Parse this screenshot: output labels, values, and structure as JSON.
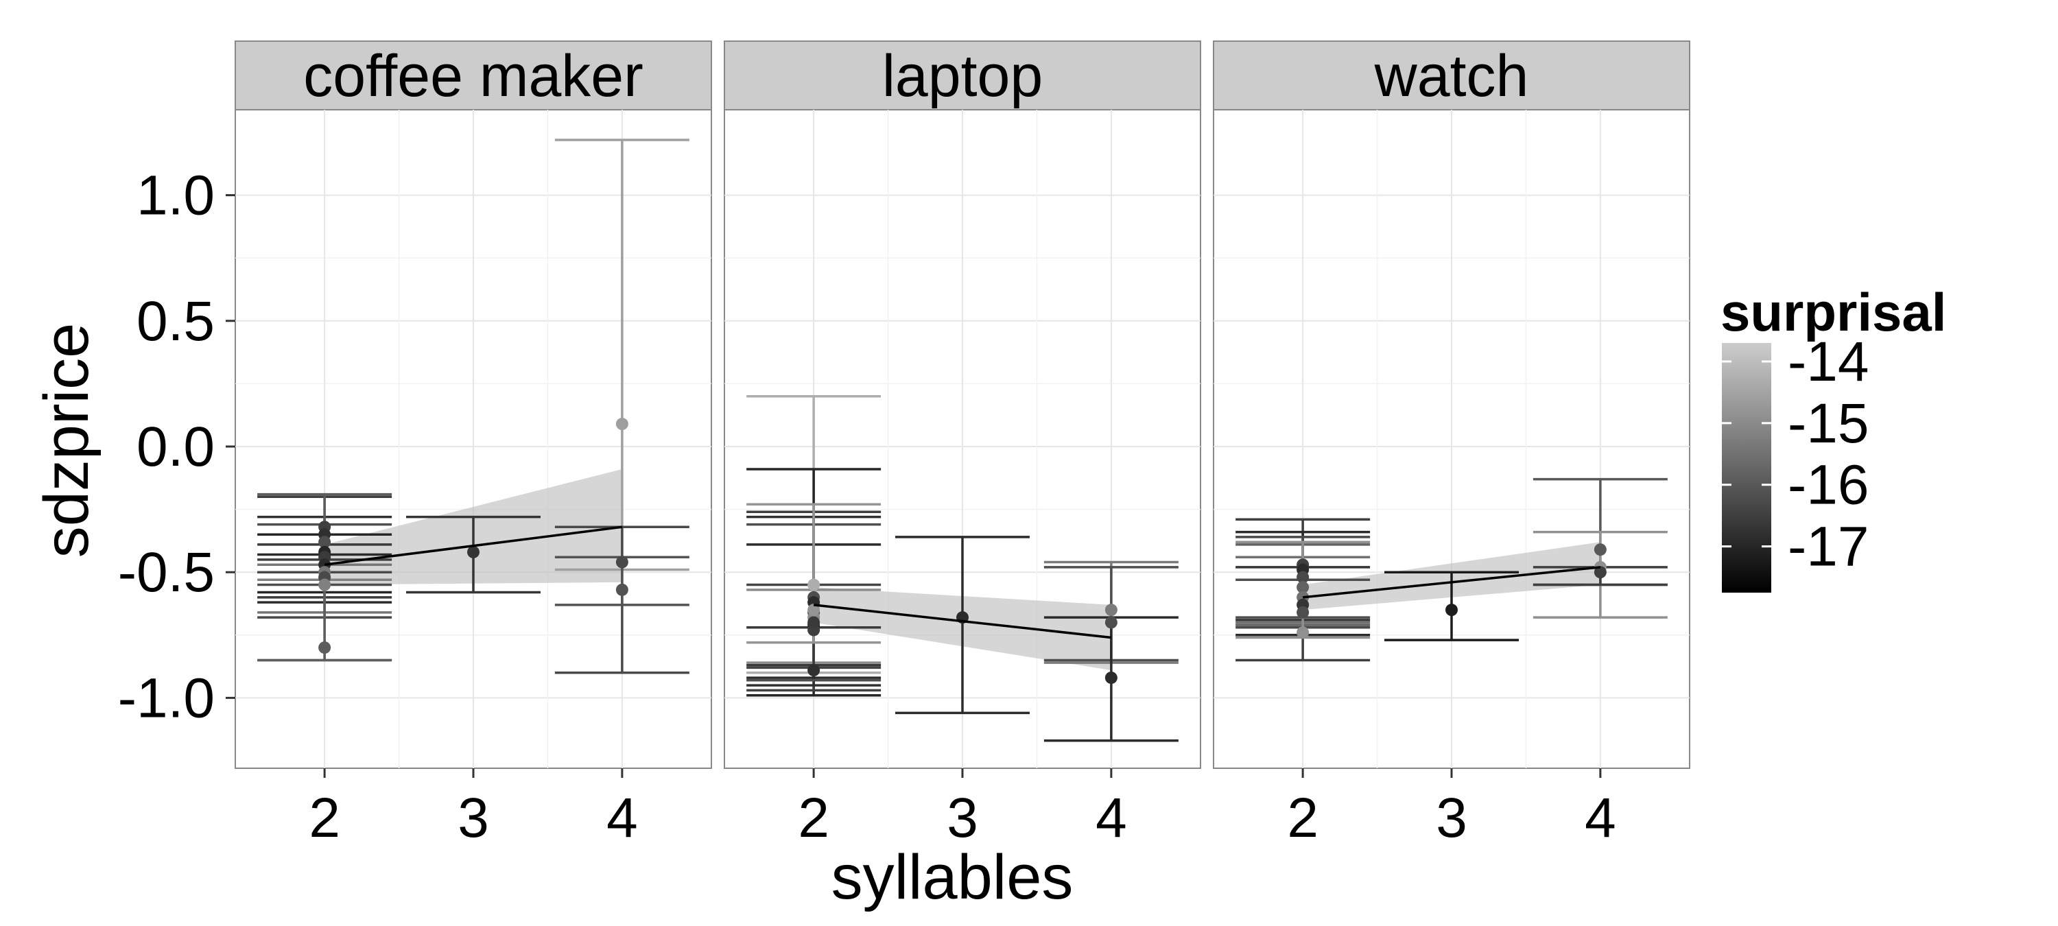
{
  "chart_data": {
    "type": "scatter",
    "xlabel": "syllables",
    "ylabel": "sdzprice",
    "x_ticks": [
      "2",
      "3",
      "4"
    ],
    "y_ticks": [
      "1.0",
      "0.5",
      "0.0",
      "-0.5",
      "-1.0"
    ],
    "xlim": [
      1.4,
      4.6
    ],
    "ylim": [
      -1.28,
      1.34
    ],
    "grid": true,
    "legend": {
      "title": "surprisal",
      "position": "right",
      "labels": [
        "-14",
        "-15",
        "-16",
        "-17"
      ],
      "range": [
        -17.75,
        -13.7
      ],
      "color_low": "#000000",
      "color_high": "#cccccc"
    },
    "panels": [
      {
        "title": "coffee maker",
        "points": [
          {
            "x": 2,
            "y": -0.32,
            "lo": -0.45,
            "hi": -0.2,
            "s": -16.5
          },
          {
            "x": 2,
            "y": -0.35,
            "lo": -0.5,
            "hi": -0.28,
            "s": -16.8
          },
          {
            "x": 2,
            "y": -0.38,
            "lo": -0.55,
            "hi": -0.31,
            "s": -16.2
          },
          {
            "x": 2,
            "y": -0.42,
            "lo": -0.58,
            "hi": -0.35,
            "s": -17.0
          },
          {
            "x": 2,
            "y": -0.44,
            "lo": -0.6,
            "hi": -0.39,
            "s": -16.6
          },
          {
            "x": 2,
            "y": -0.47,
            "lo": -0.62,
            "hi": -0.43,
            "s": -16.9
          },
          {
            "x": 2,
            "y": -0.5,
            "lo": -0.66,
            "hi": -0.47,
            "s": -15.4
          },
          {
            "x": 2,
            "y": -0.52,
            "lo": -0.68,
            "hi": -0.5,
            "s": -16.3
          },
          {
            "x": 2,
            "y": -0.55,
            "lo": -0.85,
            "hi": -0.53,
            "s": -15.2
          },
          {
            "x": 2,
            "y": -0.8,
            "lo": -0.85,
            "hi": -0.19,
            "s": -15.9
          },
          {
            "x": 3,
            "y": -0.42,
            "lo": -0.58,
            "hi": -0.28,
            "s": -16.7
          },
          {
            "x": 4,
            "y": 0.09,
            "lo": -0.49,
            "hi": 1.22,
            "s": -14.6
          },
          {
            "x": 4,
            "y": -0.46,
            "lo": -0.9,
            "hi": -0.32,
            "s": -16.3
          },
          {
            "x": 4,
            "y": -0.57,
            "lo": -0.63,
            "hi": -0.44,
            "s": -16.1
          }
        ],
        "fit": {
          "x": [
            2,
            4
          ],
          "y": [
            -0.47,
            -0.32
          ],
          "band_lo": [
            -0.55,
            -0.54
          ],
          "band_hi": [
            -0.39,
            -0.09
          ]
        }
      },
      {
        "title": "laptop",
        "points": [
          {
            "x": 2,
            "y": -0.55,
            "lo": -0.9,
            "hi": 0.2,
            "s": -14.3
          },
          {
            "x": 2,
            "y": -0.71,
            "lo": -0.99,
            "hi": -0.09,
            "s": -17.0
          },
          {
            "x": 2,
            "y": -0.73,
            "lo": -0.97,
            "hi": -0.26,
            "s": -16.5
          },
          {
            "x": 2,
            "y": -0.89,
            "lo": -0.95,
            "hi": -0.28,
            "s": -16.8
          },
          {
            "x": 2,
            "y": -0.6,
            "lo": -0.93,
            "hi": -0.31,
            "s": -16.2
          },
          {
            "x": 2,
            "y": -0.62,
            "lo": -0.92,
            "hi": -0.39,
            "s": -16.9
          },
          {
            "x": 2,
            "y": -0.66,
            "lo": -0.88,
            "hi": -0.55,
            "s": -16.4
          },
          {
            "x": 2,
            "y": -0.68,
            "lo": -0.86,
            "hi": -0.57,
            "s": -15.0
          },
          {
            "x": 2,
            "y": -0.7,
            "lo": -0.87,
            "hi": -0.72,
            "s": -16.6
          },
          {
            "x": 2,
            "y": -0.65,
            "lo": -0.78,
            "hi": -0.23,
            "s": -14.8
          },
          {
            "x": 3,
            "y": -0.68,
            "lo": -1.06,
            "hi": -0.36,
            "s": -16.9
          },
          {
            "x": 4,
            "y": -0.65,
            "lo": -0.86,
            "hi": -0.46,
            "s": -15.3
          },
          {
            "x": 4,
            "y": -0.7,
            "lo": -0.85,
            "hi": -0.48,
            "s": -16.2
          },
          {
            "x": 4,
            "y": -0.92,
            "lo": -1.17,
            "hi": -0.68,
            "s": -16.9
          }
        ],
        "fit": {
          "x": [
            2,
            4
          ],
          "y": [
            -0.63,
            -0.76
          ],
          "band_lo": [
            -0.7,
            -0.89
          ],
          "band_hi": [
            -0.56,
            -0.63
          ]
        }
      },
      {
        "title": "watch",
        "points": [
          {
            "x": 2,
            "y": -0.47,
            "lo": -0.85,
            "hi": -0.29,
            "s": -16.5
          },
          {
            "x": 2,
            "y": -0.49,
            "lo": -0.75,
            "hi": -0.34,
            "s": -16.9
          },
          {
            "x": 2,
            "y": -0.52,
            "lo": -0.72,
            "hi": -0.36,
            "s": -16.3
          },
          {
            "x": 2,
            "y": -0.56,
            "lo": -0.71,
            "hi": -0.39,
            "s": -15.8
          },
          {
            "x": 2,
            "y": -0.6,
            "lo": -0.7,
            "hi": -0.44,
            "s": -15.5
          },
          {
            "x": 2,
            "y": -0.63,
            "lo": -0.69,
            "hi": -0.48,
            "s": -16.7
          },
          {
            "x": 2,
            "y": -0.66,
            "lo": -0.68,
            "hi": -0.53,
            "s": -16.2
          },
          {
            "x": 2,
            "y": -0.74,
            "lo": -0.76,
            "hi": -0.38,
            "s": -14.9
          },
          {
            "x": 3,
            "y": -0.65,
            "lo": -0.77,
            "hi": -0.5,
            "s": -17.2
          },
          {
            "x": 4,
            "y": -0.41,
            "lo": -0.55,
            "hi": -0.13,
            "s": -16.0
          },
          {
            "x": 4,
            "y": -0.48,
            "lo": -0.68,
            "hi": -0.34,
            "s": -14.9
          },
          {
            "x": 4,
            "y": -0.5,
            "lo": -0.55,
            "hi": -0.48,
            "s": -16.5
          }
        ],
        "fit": {
          "x": [
            2,
            4
          ],
          "y": [
            -0.6,
            -0.48
          ],
          "band_lo": [
            -0.65,
            -0.55
          ],
          "band_hi": [
            -0.55,
            -0.38
          ]
        }
      }
    ]
  }
}
